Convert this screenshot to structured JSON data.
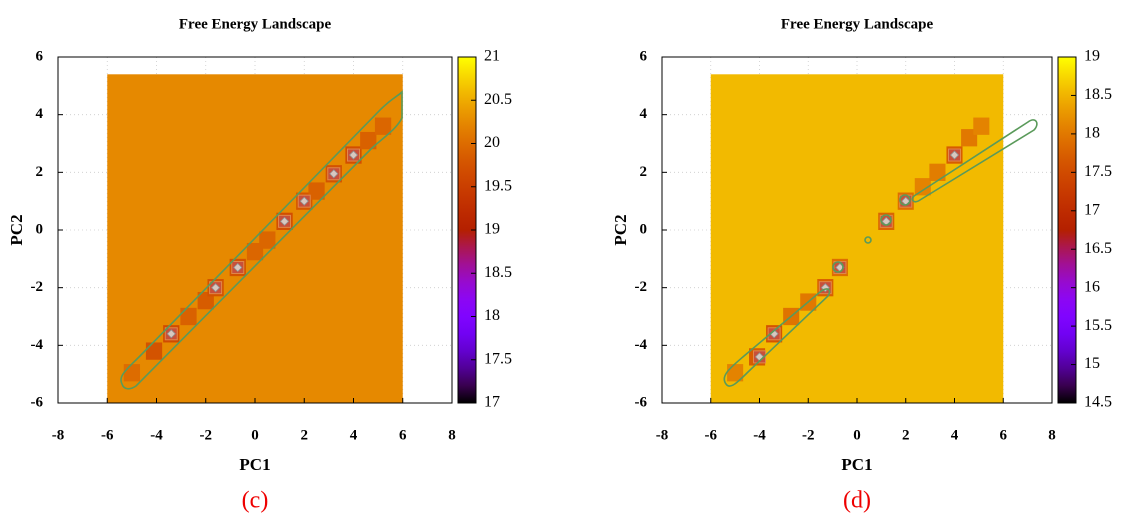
{
  "chart_data": [
    {
      "type": "heatmap",
      "title": "Free Energy Landscape",
      "xlabel": "PC1",
      "ylabel": "PC2",
      "panel_label": "(c)",
      "xlim": [
        -8,
        8
      ],
      "ylim": [
        -6,
        6
      ],
      "xticks": [
        -8,
        -6,
        -4,
        -2,
        0,
        2,
        4,
        6,
        8
      ],
      "yticks": [
        -6,
        -4,
        -2,
        0,
        2,
        4,
        6
      ],
      "grid": true,
      "clim": [
        17,
        21
      ],
      "cticks": [
        17,
        17.5,
        18,
        18.5,
        19,
        19.5,
        20,
        20.5,
        21
      ],
      "field": {
        "x": [
          -6,
          6
        ],
        "y": [
          -6,
          5.4
        ],
        "value": 20.25
      },
      "cells": {
        "x": [
          -5,
          -4.1,
          -3.4,
          -2.7,
          -2,
          -1.6,
          -0.7,
          0,
          0.5,
          1.2,
          2,
          2.5,
          3.2,
          4,
          4.6,
          5.2
        ],
        "y": [
          -4.95,
          -4.2,
          -3.6,
          -3.0,
          -2.45,
          -2.0,
          -1.3,
          -0.75,
          -0.35,
          0.3,
          1.0,
          1.35,
          1.95,
          2.6,
          3.1,
          3.6
        ],
        "values": [
          20.0,
          19.75,
          19.65,
          19.9,
          19.85,
          19.75,
          19.75,
          19.95,
          19.95,
          19.7,
          19.8,
          19.9,
          19.75,
          19.7,
          19.9,
          19.95
        ]
      },
      "minima": {
        "x": [
          -3.4,
          -1.6,
          -0.7,
          1.2,
          2,
          3.2,
          4
        ],
        "y": [
          -3.6,
          -2.0,
          -1.3,
          0.3,
          1.0,
          1.95,
          2.6
        ]
      }
    },
    {
      "type": "heatmap",
      "title": "Free Energy Landscape",
      "xlabel": "PC1",
      "ylabel": "PC2",
      "panel_label": "(d)",
      "xlim": [
        -8,
        8
      ],
      "ylim": [
        -6,
        6
      ],
      "xticks": [
        -8,
        -6,
        -4,
        -2,
        0,
        2,
        4,
        6,
        8
      ],
      "yticks": [
        -6,
        -4,
        -2,
        0,
        2,
        4,
        6
      ],
      "grid": true,
      "clim": [
        14.5,
        19
      ],
      "cticks": [
        14.5,
        15,
        15.5,
        16,
        16.5,
        17,
        17.5,
        18,
        18.5,
        19
      ],
      "field": {
        "x": [
          -6,
          6
        ],
        "y": [
          -6,
          5.4
        ],
        "value": 18.55
      },
      "cells": {
        "x": [
          -5,
          -4.1,
          -3.4,
          -2.7,
          -2,
          -1.3,
          -0.7,
          1.2,
          2,
          2.7,
          3.3,
          4,
          4.6,
          5.1
        ],
        "y": [
          -4.95,
          -4.4,
          -3.6,
          -3.0,
          -2.5,
          -2.0,
          -1.3,
          0.3,
          1.0,
          1.5,
          2.0,
          2.6,
          3.2,
          3.6
        ],
        "values": [
          18.1,
          17.7,
          17.6,
          17.95,
          18.0,
          17.75,
          17.9,
          17.8,
          17.9,
          18.1,
          18.05,
          17.7,
          18.0,
          18.1
        ]
      },
      "minima": {
        "x": [
          -4,
          -3.4,
          -1.3,
          -0.7,
          1.2,
          2,
          4
        ],
        "y": [
          -4.4,
          -3.6,
          -2.0,
          -1.3,
          0.3,
          1.0,
          2.6
        ]
      }
    }
  ]
}
